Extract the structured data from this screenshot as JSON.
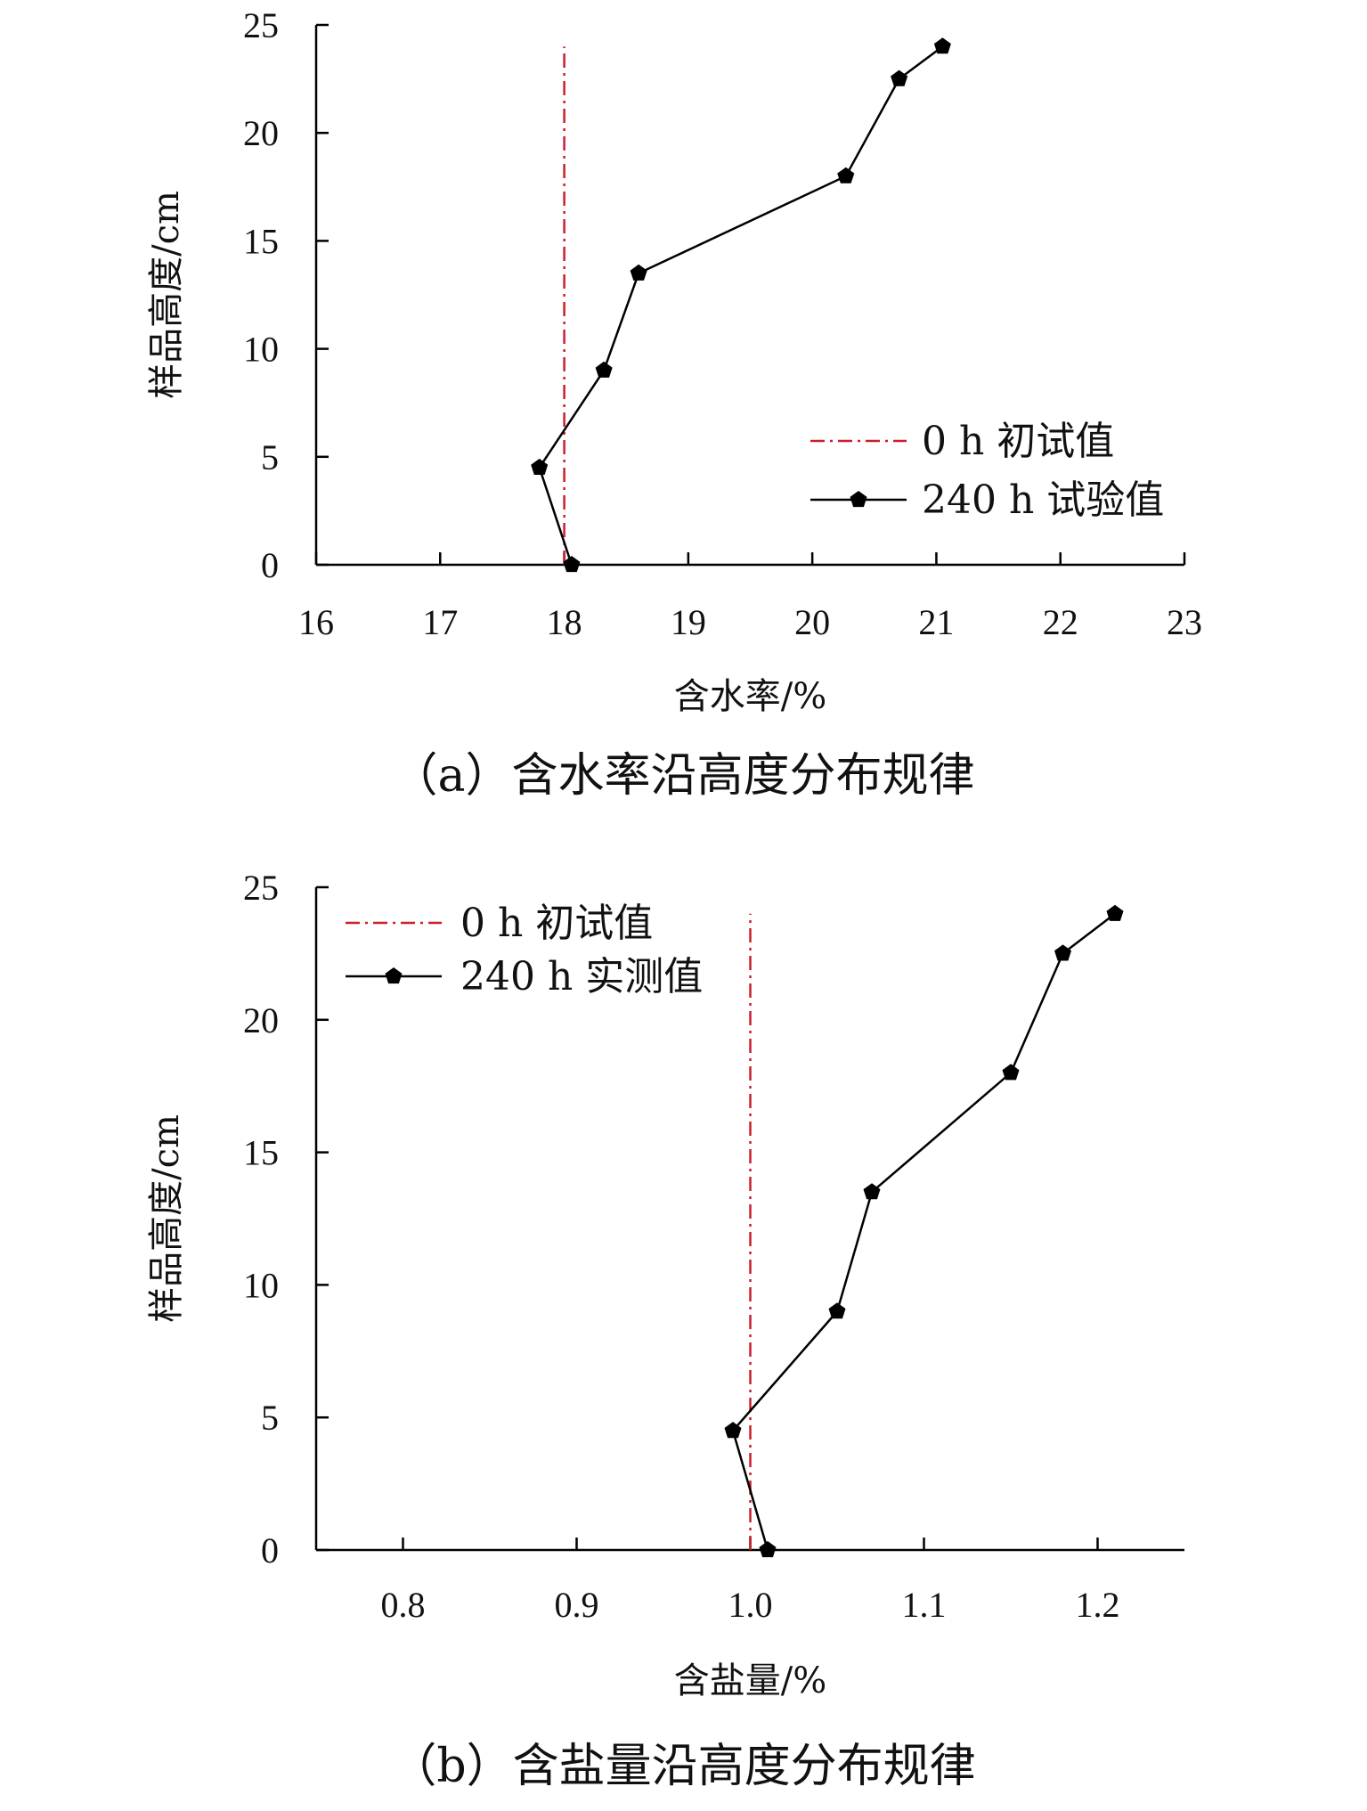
{
  "chart_data": [
    {
      "type": "line",
      "caption": "（a）含水率沿高度分布规律",
      "xlabel": "含水率/%",
      "ylabel": "样品高度/cm",
      "xlim": [
        16,
        23
      ],
      "ylim": [
        0,
        25
      ],
      "xticks": [
        "16",
        "17",
        "18",
        "19",
        "20",
        "21",
        "22",
        "23"
      ],
      "yticks": [
        "0",
        "5",
        "10",
        "15",
        "20",
        "25"
      ],
      "legend_position": "lower-right",
      "series": [
        {
          "name": "0 h 初试值",
          "style": "dash-dot",
          "color": "#cc1f2d",
          "x": [
            18.0,
            18.0
          ],
          "y": [
            0,
            24
          ]
        },
        {
          "name": "240 h 试验值",
          "style": "solid-pentagon-marker",
          "color": "#000000",
          "x": [
            18.06,
            17.8,
            18.32,
            18.6,
            20.27,
            20.7,
            21.05
          ],
          "y": [
            0,
            4.5,
            9,
            13.5,
            18,
            22.5,
            24
          ]
        }
      ]
    },
    {
      "type": "line",
      "caption": "（b）含盐量沿高度分布规律",
      "xlabel": "含盐量/%",
      "ylabel": "样品高度/cm",
      "xlim": [
        0.75,
        1.25
      ],
      "ylim": [
        0,
        25
      ],
      "xticks": [
        "0.8",
        "0.9",
        "1.0",
        "1.1",
        "1.2"
      ],
      "yticks": [
        "0",
        "5",
        "10",
        "15",
        "20",
        "25"
      ],
      "legend_position": "upper-left",
      "series": [
        {
          "name": "0 h 初试值",
          "style": "dash-dot",
          "color": "#cc1f2d",
          "x": [
            1.0,
            1.0
          ],
          "y": [
            0,
            24
          ]
        },
        {
          "name": "240 h 实测值",
          "style": "solid-pentagon-marker",
          "color": "#000000",
          "x": [
            1.01,
            0.99,
            1.05,
            1.07,
            1.15,
            1.18,
            1.21
          ],
          "y": [
            0,
            4.5,
            9,
            13.5,
            18,
            22.5,
            24
          ]
        }
      ]
    }
  ]
}
